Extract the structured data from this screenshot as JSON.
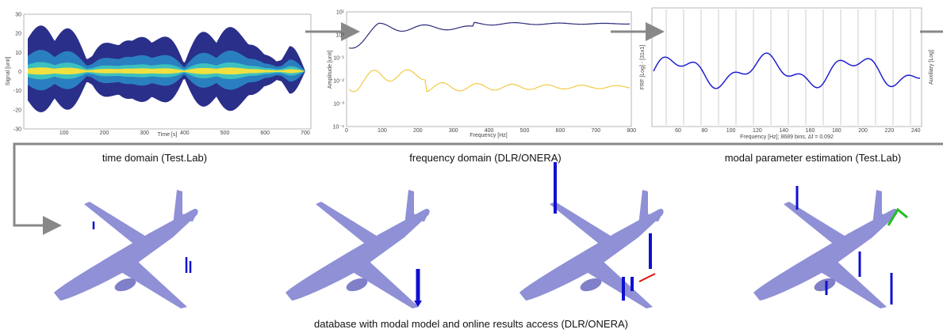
{
  "panels": [
    {
      "caption": "time domain (Test.Lab)",
      "x_label": "Time [s]",
      "y_label": "Signal [unit]",
      "x_ticks": [
        "100",
        "200",
        "300",
        "400",
        "500",
        "600",
        "700"
      ],
      "y_ticks": [
        "30",
        "20",
        "10",
        "0",
        "-10",
        "-20",
        "-30"
      ]
    },
    {
      "caption": "frequency domain (DLR/ONERA)",
      "x_label": "Frequency [Hz]",
      "y_label": "Amplitude [unit]",
      "x_ticks": [
        "0",
        "100",
        "200",
        "300",
        "400",
        "500",
        "600",
        "700",
        "800"
      ],
      "y_ticks": [
        "10¹",
        "10⁰",
        "10⁻¹",
        "10⁻²",
        "10⁻³",
        "10⁻⁴"
      ]
    },
    {
      "caption": "modal parameter estimation (Test.Lab)",
      "x_label": "Frequency [Hz]; 8689 bins, Δf = 0.092",
      "y_label": "FRF [Log] - [31x1]",
      "y2_label": "Auxiliary [Log]",
      "x_ticks": [
        "60",
        "80",
        "100",
        "120",
        "140",
        "160",
        "180",
        "200",
        "220",
        "240"
      ]
    }
  ],
  "footer": "database with modal model and online results access (DLR/ONERA)"
}
